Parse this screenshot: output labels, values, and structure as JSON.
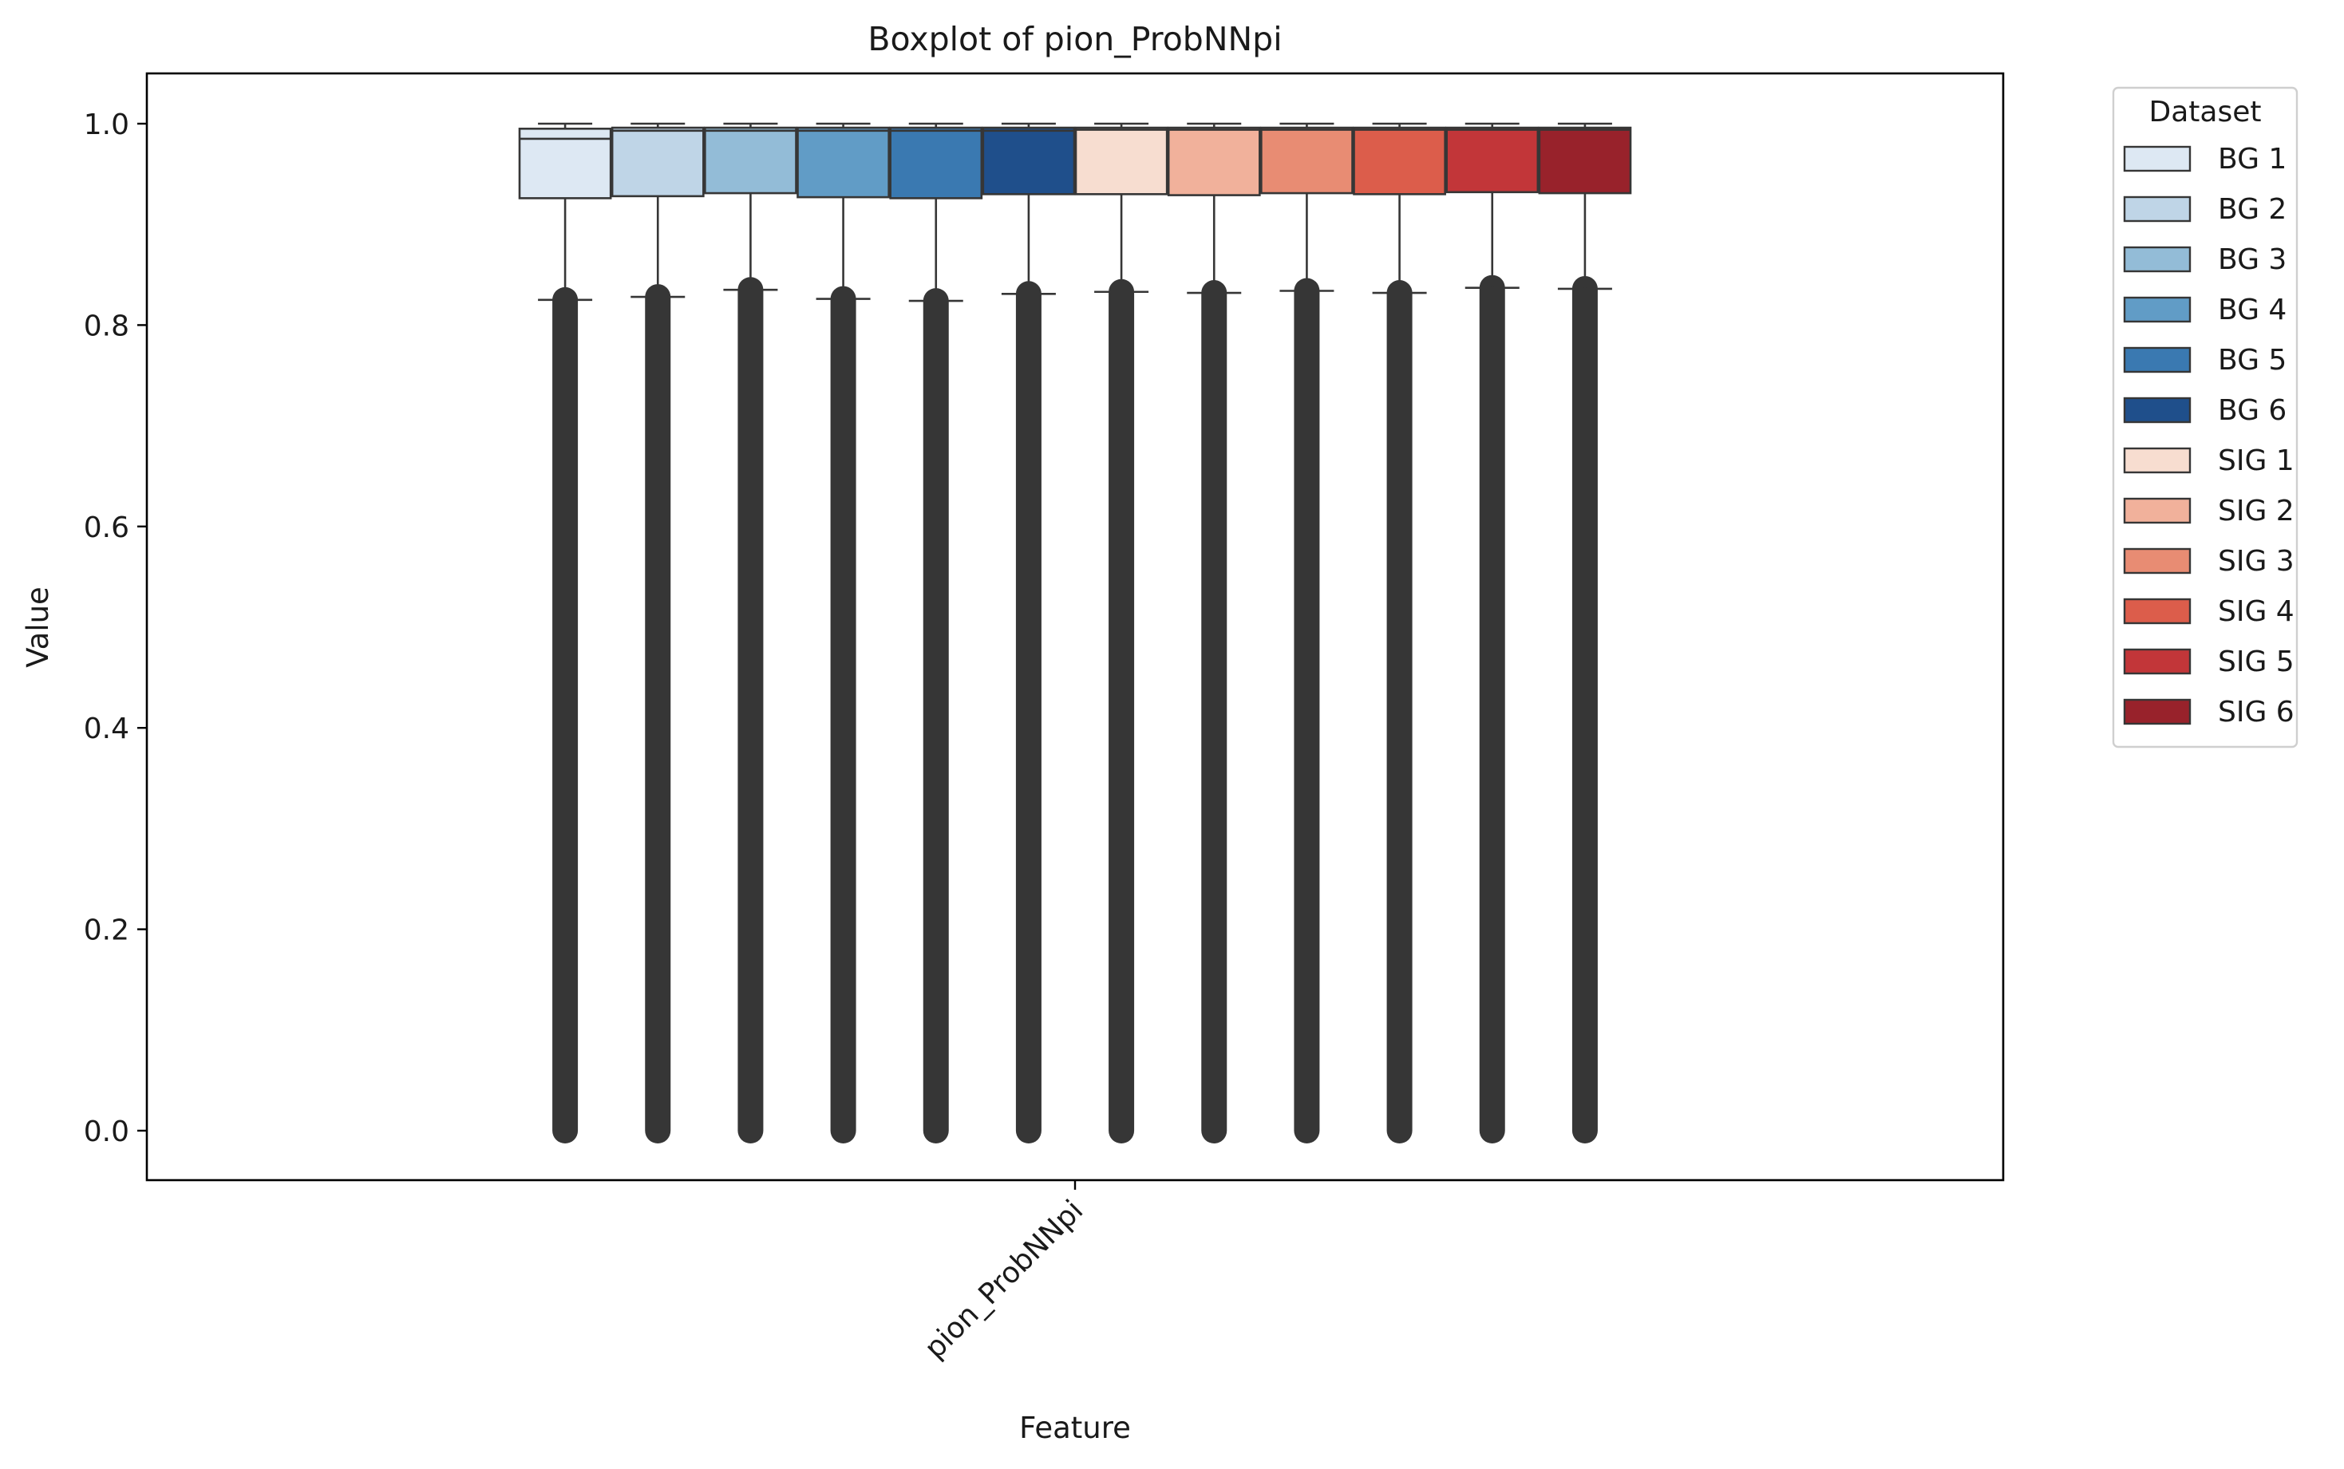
{
  "chart_data": {
    "type": "boxplot",
    "title": "Boxplot of pion_ProbNNpi",
    "xlabel": "Feature",
    "ylabel": "Value",
    "categories": [
      "pion_ProbNNpi"
    ],
    "ylim": [
      -0.05,
      1.05
    ],
    "yticks": [
      "0.0",
      "0.2",
      "0.4",
      "0.6",
      "0.8",
      "1.0"
    ],
    "grid": false,
    "legend": {
      "title": "Dataset",
      "placement": "outside-top-right"
    },
    "series": [
      {
        "name": "BG 1",
        "color": "#dde8f3",
        "q1": 0.926,
        "median": 0.985,
        "q3": 0.995,
        "whisker_low": 0.825,
        "whisker_high": 1.0,
        "outlier_min": 0.0,
        "outlier_max": 0.825
      },
      {
        "name": "BG 2",
        "color": "#bfd5e7",
        "q1": 0.928,
        "median": 0.993,
        "q3": 0.996,
        "whisker_low": 0.828,
        "whisker_high": 1.0,
        "outlier_min": 0.0,
        "outlier_max": 0.828
      },
      {
        "name": "BG 3",
        "color": "#93bcd7",
        "q1": 0.931,
        "median": 0.993,
        "q3": 0.996,
        "whisker_low": 0.835,
        "whisker_high": 1.0,
        "outlier_min": 0.0,
        "outlier_max": 0.835
      },
      {
        "name": "BG 4",
        "color": "#619cc6",
        "q1": 0.927,
        "median": 0.993,
        "q3": 0.996,
        "whisker_low": 0.826,
        "whisker_high": 1.0,
        "outlier_min": 0.0,
        "outlier_max": 0.826
      },
      {
        "name": "BG 5",
        "color": "#3a79b1",
        "q1": 0.926,
        "median": 0.993,
        "q3": 0.996,
        "whisker_low": 0.824,
        "whisker_high": 1.0,
        "outlier_min": 0.0,
        "outlier_max": 0.824
      },
      {
        "name": "BG 6",
        "color": "#1f4f8b",
        "q1": 0.93,
        "median": 0.993,
        "q3": 0.996,
        "whisker_low": 0.831,
        "whisker_high": 1.0,
        "outlier_min": 0.0,
        "outlier_max": 0.831
      },
      {
        "name": "SIG 1",
        "color": "#f7ddd0",
        "q1": 0.93,
        "median": 0.994,
        "q3": 0.996,
        "whisker_low": 0.833,
        "whisker_high": 1.0,
        "outlier_min": 0.0,
        "outlier_max": 0.833
      },
      {
        "name": "SIG 2",
        "color": "#f1b19b",
        "q1": 0.929,
        "median": 0.994,
        "q3": 0.996,
        "whisker_low": 0.832,
        "whisker_high": 1.0,
        "outlier_min": 0.0,
        "outlier_max": 0.832
      },
      {
        "name": "SIG 3",
        "color": "#e88c73",
        "q1": 0.931,
        "median": 0.994,
        "q3": 0.996,
        "whisker_low": 0.834,
        "whisker_high": 1.0,
        "outlier_min": 0.0,
        "outlier_max": 0.834
      },
      {
        "name": "SIG 4",
        "color": "#dc5d4b",
        "q1": 0.93,
        "median": 0.994,
        "q3": 0.996,
        "whisker_low": 0.832,
        "whisker_high": 1.0,
        "outlier_min": 0.0,
        "outlier_max": 0.832
      },
      {
        "name": "SIG 5",
        "color": "#c23639",
        "q1": 0.932,
        "median": 0.994,
        "q3": 0.996,
        "whisker_low": 0.837,
        "whisker_high": 1.0,
        "outlier_min": 0.0,
        "outlier_max": 0.837
      },
      {
        "name": "SIG 6",
        "color": "#98222b",
        "q1": 0.931,
        "median": 0.994,
        "q3": 0.996,
        "whisker_low": 0.836,
        "whisker_high": 1.0,
        "outlier_min": 0.0,
        "outlier_max": 0.836
      }
    ]
  }
}
